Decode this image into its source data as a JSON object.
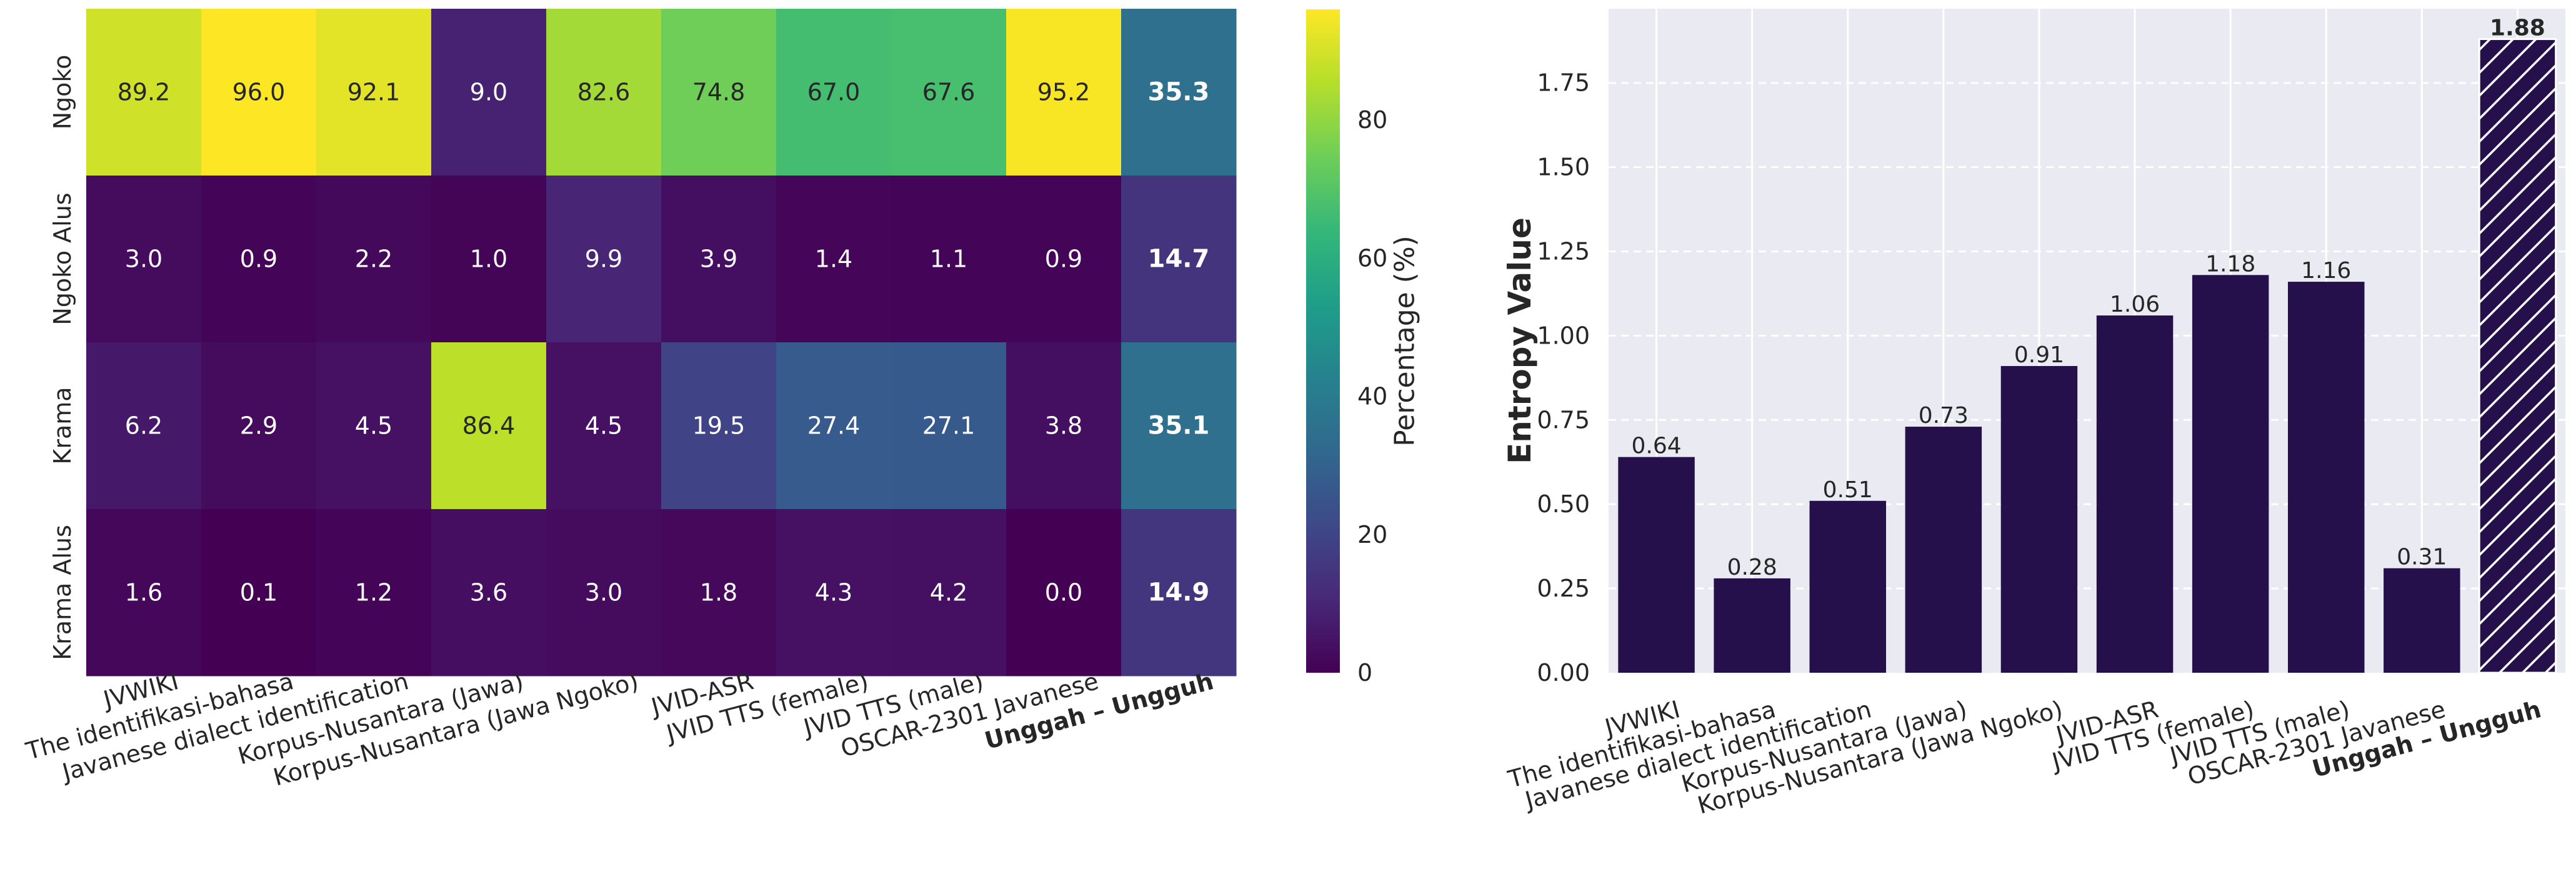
{
  "chart_data": [
    {
      "type": "heatmap",
      "title": "",
      "rows": [
        "Ngoko",
        "Ngoko Alus",
        "Krama",
        "Krama Alus"
      ],
      "columns": [
        "JVWIKI",
        "The identifikasi-bahasa",
        "Javanese dialect identification",
        "Korpus-Nusantara (Jawa)",
        "Korpus-Nusantara (Jawa Ngoko)",
        "JVID-ASR",
        "JVID TTS (female)",
        "JVID TTS (male)",
        "OSCAR-2301 Javanese",
        "Unggah – Ungguh"
      ],
      "highlight_column": "Unggah – Ungguh",
      "values": [
        [
          89.2,
          96.0,
          92.1,
          9.0,
          82.6,
          74.8,
          67.0,
          67.6,
          95.2,
          35.3
        ],
        [
          3.0,
          0.9,
          2.2,
          1.0,
          9.9,
          3.9,
          1.4,
          1.1,
          0.9,
          14.7
        ],
        [
          6.2,
          2.9,
          4.5,
          86.4,
          4.5,
          19.5,
          27.4,
          27.1,
          3.8,
          35.1
        ],
        [
          1.6,
          0.1,
          1.2,
          3.6,
          3.0,
          1.8,
          4.3,
          4.2,
          0.0,
          14.9
        ]
      ],
      "value_labels": [
        [
          "89.2",
          "96.0",
          "92.1",
          "9.0",
          "82.6",
          "74.8",
          "67.0",
          "67.6",
          "95.2",
          "35.3"
        ],
        [
          "3.0",
          "0.9",
          "2.2",
          "1.0",
          "9.9",
          "3.9",
          "1.4",
          "1.1",
          "0.9",
          "14.7"
        ],
        [
          "6.2",
          "2.9",
          "4.5",
          "86.4",
          "4.5",
          "19.5",
          "27.4",
          "27.1",
          "3.8",
          "35.1"
        ],
        [
          "1.6",
          "0.1",
          "1.2",
          "3.6",
          "3.0",
          "1.8",
          "4.3",
          "4.2",
          "0.0",
          "14.9"
        ]
      ],
      "colorbar": {
        "label": "Percentage (%)",
        "range": [
          0,
          96
        ],
        "ticks": [
          0,
          20,
          40,
          60,
          80
        ],
        "tick_labels": [
          "0",
          "20",
          "40",
          "60",
          "80"
        ],
        "colormap": "viridis",
        "stops": [
          "#440154",
          "#482878",
          "#3e4989",
          "#31688e",
          "#26828e",
          "#1f9e89",
          "#35b779",
          "#6ece58",
          "#b5de2b",
          "#fde725"
        ]
      }
    },
    {
      "type": "bar",
      "title": "",
      "xlabel": "",
      "ylabel": "Entropy Value",
      "categories": [
        "JVWIKI",
        "The identifikasi-bahasa",
        "Javanese dialect identification",
        "Korpus-Nusantara (Jawa)",
        "Korpus-Nusantara (Jawa Ngoko)",
        "JVID-ASR",
        "JVID TTS (female)",
        "JVID TTS (male)",
        "OSCAR-2301 Javanese",
        "Unggah – Ungguh"
      ],
      "values": [
        0.64,
        0.28,
        0.51,
        0.73,
        0.91,
        1.06,
        1.18,
        1.16,
        0.31,
        1.88
      ],
      "value_labels": [
        "0.64",
        "0.28",
        "0.51",
        "0.73",
        "0.91",
        "1.06",
        "1.18",
        "1.16",
        "0.31",
        "1.88"
      ],
      "highlight_category": "Unggah – Ungguh",
      "ylim": [
        0,
        1.97
      ],
      "yticks": [
        0.0,
        0.25,
        0.5,
        0.75,
        1.0,
        1.25,
        1.5,
        1.75
      ],
      "ytick_labels": [
        "0.00",
        "0.25",
        "0.50",
        "0.75",
        "1.00",
        "1.25",
        "1.50",
        "1.75"
      ],
      "grid": true,
      "bar_color": "#25104c",
      "background_color": "#eaeaf2"
    }
  ]
}
